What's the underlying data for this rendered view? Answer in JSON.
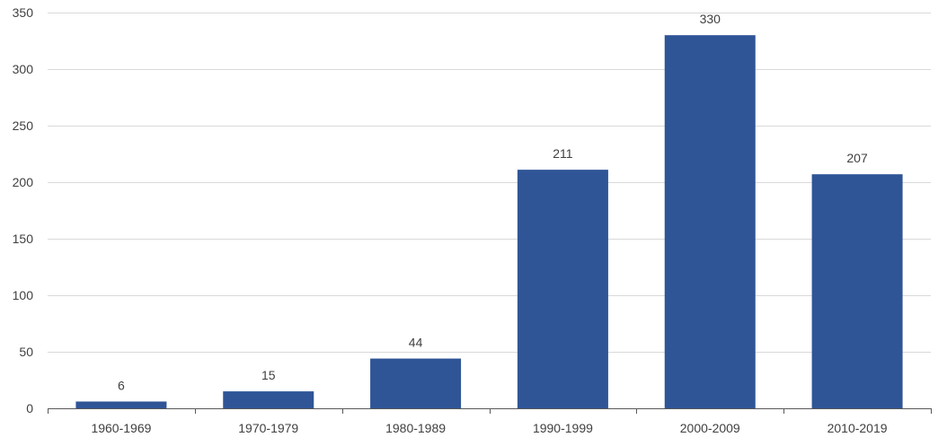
{
  "chart_data": {
    "type": "bar",
    "title": "",
    "xlabel": "",
    "ylabel": "",
    "categories": [
      "1960-1969",
      "1970-1979",
      "1980-1989",
      "1990-1999",
      "2000-2009",
      "2010-2019"
    ],
    "values": [
      6,
      15,
      44,
      211,
      330,
      207
    ],
    "data_labels": [
      "6",
      "15",
      "44",
      "211",
      "330",
      "207"
    ],
    "ylim": [
      0,
      350
    ],
    "yticks": [
      0,
      50,
      100,
      150,
      200,
      250,
      300,
      350
    ],
    "ytick_labels": [
      "0",
      "50",
      "100",
      "150",
      "200",
      "250",
      "300",
      "350"
    ],
    "grid": true,
    "legend": "none",
    "bar_color": "#2f5597"
  }
}
